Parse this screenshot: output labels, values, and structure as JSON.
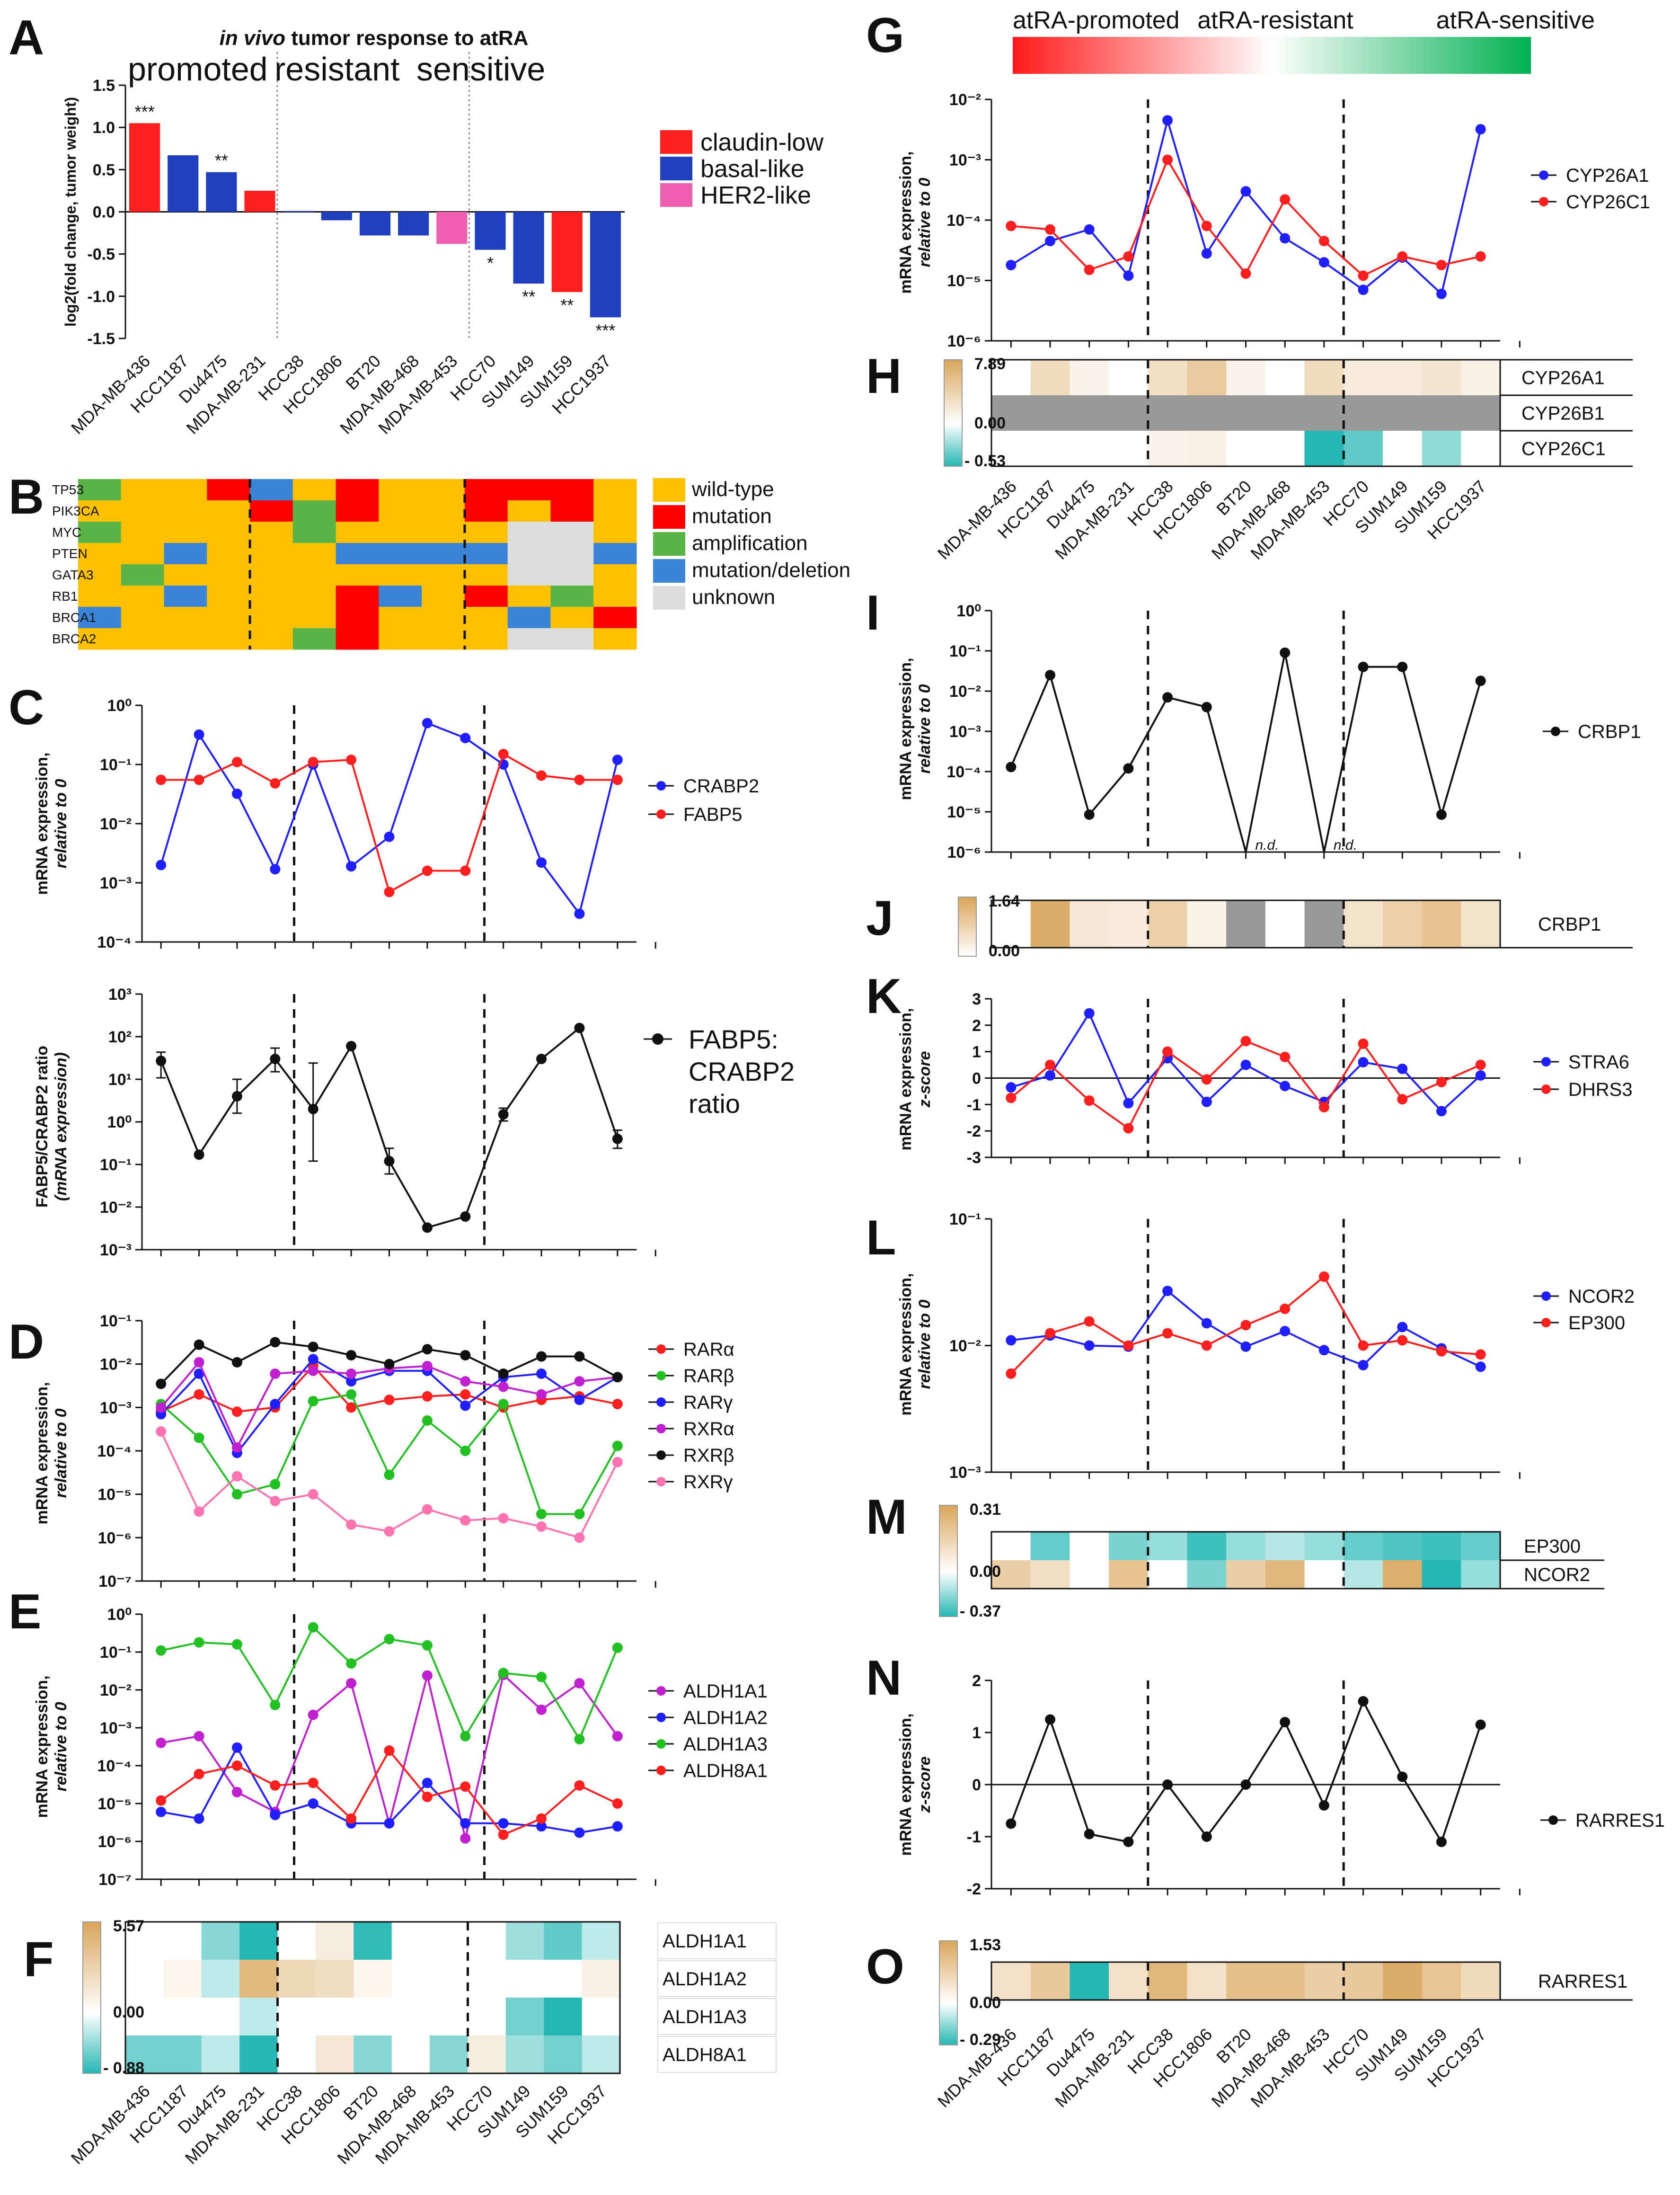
{
  "cell_lines": [
    "MDA-MB-436",
    "HCC1187",
    "Du4475",
    "MDA-MB-231",
    "HCC38",
    "HCC1806",
    "BT20",
    "MDA-MB-468",
    "MDA-MB-453",
    "HCC70",
    "SUM149",
    "SUM159",
    "HCC1937"
  ],
  "colors": {
    "claudin_low": "#ff2020",
    "basal_like": "#1f3fbf",
    "her2_like": "#ee5fb0",
    "wild": "#ffc000",
    "mutation": "#ff0000",
    "amplification": "#5bb446",
    "deletion": "#3a85d8",
    "unknown": "#dcdcdc",
    "heat_pos": "#d9a55a",
    "heat_neg": "#25b7b3",
    "na": "#999999"
  },
  "chart_data": [
    {
      "id": "A",
      "type": "bar",
      "title_italic": "in vivo",
      "title_rest": " tumor response to atRA",
      "groups": [
        "promoted",
        "resistant",
        "sensitive"
      ],
      "ylabel": "log2(fold change, tumor weight)",
      "ylim": [
        -1.5,
        1.5
      ],
      "yticks": [
        "1.5",
        "1.0",
        "0.5",
        "0.0",
        "-0.5",
        "-1.0",
        "-1.5"
      ],
      "values": [
        1.05,
        0.67,
        0.47,
        0.25,
        0.01,
        -0.1,
        -0.28,
        -0.28,
        -0.38,
        -0.45,
        -0.85,
        -0.95,
        -1.25
      ],
      "subtype": [
        "claudin_low",
        "basal_like",
        "basal_like",
        "claudin_low",
        "basal_like",
        "basal_like",
        "basal_like",
        "basal_like",
        "her2_like",
        "basal_like",
        "basal_like",
        "claudin_low",
        "basal_like"
      ],
      "sig": [
        "***",
        "",
        "**",
        "",
        "",
        "",
        "",
        "",
        "",
        "*",
        "**",
        "**",
        "***"
      ],
      "legend": [
        {
          "key": "claudin_low",
          "label": "claudin-low"
        },
        {
          "key": "basal_like",
          "label": "basal-like"
        },
        {
          "key": "her2_like",
          "label": "HER2-like"
        }
      ]
    },
    {
      "id": "B",
      "type": "heatmap",
      "genes": [
        "TP53",
        "PIK3CA",
        "MYC",
        "PTEN",
        "GATA3",
        "RB1",
        "BRCA1",
        "BRCA2"
      ],
      "grid": [
        [
          "amp",
          "wt",
          "wt",
          "mut",
          "del",
          "wt",
          "mut",
          "wt",
          "wt",
          "mut",
          "mut",
          "mut",
          "wt"
        ],
        [
          "wt",
          "wt",
          "wt",
          "wt",
          "mut",
          "amp",
          "mut",
          "wt",
          "wt",
          "mut",
          "wt",
          "mut",
          "wt"
        ],
        [
          "amp",
          "wt",
          "wt",
          "wt",
          "wt",
          "amp",
          "wt",
          "wt",
          "wt",
          "wt",
          "unk",
          "unk",
          "wt"
        ],
        [
          "wt",
          "wt",
          "del",
          "wt",
          "wt",
          "wt",
          "del",
          "del",
          "del",
          "del",
          "unk",
          "unk",
          "del"
        ],
        [
          "wt",
          "amp",
          "wt",
          "wt",
          "wt",
          "wt",
          "wt",
          "wt",
          "wt",
          "wt",
          "unk",
          "unk",
          "wt"
        ],
        [
          "wt",
          "wt",
          "del",
          "wt",
          "wt",
          "wt",
          "mut",
          "del",
          "wt",
          "mut",
          "wt",
          "amp",
          "wt"
        ],
        [
          "del",
          "wt",
          "wt",
          "wt",
          "wt",
          "wt",
          "mut",
          "wt",
          "wt",
          "wt",
          "del",
          "wt",
          "mut"
        ],
        [
          "wt",
          "wt",
          "wt",
          "wt",
          "wt",
          "amp",
          "mut",
          "wt",
          "wt",
          "wt",
          "unk",
          "unk",
          "wt"
        ]
      ],
      "legend": [
        {
          "key": "wt",
          "label": "wild-type"
        },
        {
          "key": "mut",
          "label": "mutation"
        },
        {
          "key": "amp",
          "label": "amplification"
        },
        {
          "key": "del",
          "label": "mutation/deletion"
        },
        {
          "key": "unk",
          "label": "unknown"
        }
      ]
    },
    {
      "id": "C",
      "type": "line",
      "ylabel": [
        "mRNA expression,",
        "relative to 0"
      ],
      "ylabel_italic": [
        false,
        true
      ],
      "ylog": [
        -4,
        0
      ],
      "ytick_labels": [
        "10⁰",
        "10⁻¹",
        "10⁻²",
        "10⁻³",
        "10⁻⁴"
      ],
      "series": [
        {
          "name": "CRABP2",
          "color": "#1f1fff",
          "values": [
            0.002,
            0.32,
            0.032,
            0.0017,
            0.1,
            0.0019,
            0.006,
            0.5,
            0.28,
            0.1,
            0.0022,
            0.0003,
            0.12
          ]
        },
        {
          "name": "FABP5",
          "color": "#ff1f1f",
          "values": [
            0.055,
            0.055,
            0.11,
            0.048,
            0.11,
            0.12,
            0.0007,
            0.0016,
            0.0016,
            0.15,
            0.065,
            0.055,
            0.055
          ]
        }
      ]
    },
    {
      "id": "C2",
      "type": "line",
      "ylabel": [
        "FABP5/CRABP2 ratio",
        "(mRNA expression)"
      ],
      "ylabel_italic": [
        false,
        true
      ],
      "ylog": [
        -3,
        3
      ],
      "ytick_labels": [
        "10³",
        "10²",
        "10¹",
        "10⁰",
        "10⁻¹",
        "10⁻²",
        "10⁻³"
      ],
      "series": [
        {
          "name": "FABP5: CRABP2 ratio",
          "color": "#111111",
          "values": [
            27,
            0.17,
            4,
            30,
            2,
            60,
            0.12,
            0.0033,
            0.006,
            1.5,
            30,
            160,
            0.4
          ]
        }
      ],
      "legend_lines": [
        "FABP5:",
        "CRABP2",
        "ratio"
      ]
    },
    {
      "id": "D",
      "type": "line",
      "ylabel": [
        "mRNA expression,",
        "relative to 0"
      ],
      "ylabel_italic": [
        false,
        true
      ],
      "ylog": [
        -7,
        -1
      ],
      "ytick_labels": [
        "10⁻¹",
        "10⁻²",
        "10⁻³",
        "10⁻⁴",
        "10⁻⁵",
        "10⁻⁶",
        "10⁻⁷"
      ],
      "series": [
        {
          "name": "RARα",
          "color": "#ff1f1f",
          "values": [
            0.0008,
            0.002,
            0.0008,
            0.001,
            0.009,
            0.001,
            0.0015,
            0.0018,
            0.002,
            0.001,
            0.0015,
            0.0018,
            0.0012
          ]
        },
        {
          "name": "RARβ",
          "color": "#22c022",
          "values": [
            0.0012,
            0.0002,
            1e-05,
            1.7e-05,
            0.0014,
            0.002,
            2.8e-05,
            0.0005,
            0.0001,
            0.0012,
            3.5e-06,
            3.5e-06,
            0.00013
          ]
        },
        {
          "name": "RARγ",
          "color": "#1f1fff",
          "values": [
            0.0007,
            0.006,
            9e-05,
            0.0012,
            0.013,
            0.004,
            0.007,
            0.007,
            0.0011,
            0.005,
            0.006,
            0.0015,
            0.005
          ]
        },
        {
          "name": "RXRα",
          "color": "#c020d0",
          "values": [
            0.001,
            0.011,
            0.00012,
            0.006,
            0.007,
            0.006,
            0.008,
            0.009,
            0.004,
            0.003,
            0.002,
            0.004,
            0.005
          ]
        },
        {
          "name": "RXRβ",
          "color": "#111111",
          "values": [
            0.0035,
            0.028,
            0.011,
            0.032,
            0.025,
            0.016,
            0.01,
            0.022,
            0.016,
            0.006,
            0.015,
            0.015,
            0.005
          ]
        },
        {
          "name": "RXRγ",
          "color": "#ff73b0",
          "values": [
            0.00028,
            4e-06,
            2.6e-05,
            7e-06,
            1e-05,
            2e-06,
            1.4e-06,
            4.5e-06,
            2.5e-06,
            2.8e-06,
            1.8e-06,
            1e-06,
            5.5e-05
          ]
        }
      ]
    },
    {
      "id": "E",
      "type": "line",
      "ylabel": [
        "mRNA expression,",
        "relative to 0"
      ],
      "ylabel_italic": [
        false,
        true
      ],
      "ylog": [
        -7,
        0
      ],
      "ytick_labels": [
        "10⁰",
        "10⁻¹",
        "10⁻²",
        "10⁻³",
        "10⁻⁴",
        "10⁻⁵",
        "10⁻⁶",
        "10⁻⁷"
      ],
      "series": [
        {
          "name": "ALDH1A1",
          "color": "#c020d0",
          "values": [
            0.0004,
            0.0006,
            2e-05,
            6e-06,
            0.0022,
            0.015,
            3e-06,
            0.024,
            1.2e-06,
            0.025,
            0.003,
            0.015,
            0.0006
          ]
        },
        {
          "name": "ALDH1A2",
          "color": "#1f1fff",
          "values": [
            6e-06,
            4e-06,
            0.0003,
            5e-06,
            1e-05,
            3e-06,
            3e-06,
            3.5e-05,
            3e-06,
            3e-06,
            2.5e-06,
            1.7e-06,
            2.5e-06
          ]
        },
        {
          "name": "ALDH1A3",
          "color": "#22c022",
          "values": [
            0.11,
            0.18,
            0.16,
            0.004,
            0.45,
            0.05,
            0.22,
            0.15,
            0.0006,
            0.028,
            0.022,
            0.0005,
            0.13
          ]
        },
        {
          "name": "ALDH8A1",
          "color": "#ff1f1f",
          "values": [
            1.2e-05,
            6e-05,
            0.0001,
            3e-05,
            3.5e-05,
            4e-06,
            0.00025,
            1.5e-05,
            2.8e-05,
            1.5e-06,
            4e-06,
            3e-05,
            1e-05
          ]
        }
      ]
    },
    {
      "id": "F",
      "type": "heatmap",
      "genes": [
        "ALDH1A1",
        "ALDH1A2",
        "ALDH1A3",
        "ALDH8A1"
      ],
      "scale": [
        "5.57",
        "0.00",
        "- 0.88"
      ],
      "smax": 5.57,
      "smin": -0.88,
      "values": [
        [
          0,
          0,
          -0.3,
          -0.88,
          0,
          0.3,
          -0.8,
          0,
          0,
          0,
          -0.2,
          -0.5,
          -0.1
        ],
        [
          0,
          0.1,
          -0.1,
          3.5,
          1.2,
          0.9,
          0.1,
          0,
          0,
          0,
          0,
          0,
          0.2
        ],
        [
          0,
          0,
          0,
          -0.1,
          0,
          0,
          0,
          0,
          0,
          0,
          -0.4,
          -0.88,
          0
        ],
        [
          -0.4,
          -0.4,
          -0.1,
          -0.85,
          0,
          0.5,
          -0.3,
          0,
          -0.3,
          0.3,
          -0.2,
          -0.4,
          -0.1
        ]
      ]
    },
    {
      "id": "G",
      "type": "line",
      "gradient_labels": [
        "atRA-promoted",
        "atRA-resistant",
        "atRA-sensitive"
      ],
      "ylabel": [
        "mRNA expression,",
        "relative to 0"
      ],
      "ylabel_italic": [
        false,
        true
      ],
      "ylog": [
        -6,
        -2
      ],
      "ytick_labels": [
        "10⁻²",
        "10⁻³",
        "10⁻⁴",
        "10⁻⁵",
        "10⁻⁶"
      ],
      "series": [
        {
          "name": "CYP26A1",
          "color": "#1f1fff",
          "values": [
            1.8e-05,
            4.5e-05,
            7e-05,
            1.2e-05,
            0.0045,
            2.8e-05,
            0.0003,
            5e-05,
            2e-05,
            7e-06,
            2.4e-05,
            6e-06,
            0.0032
          ]
        },
        {
          "name": "CYP26C1",
          "color": "#ff1f1f",
          "values": [
            8e-05,
            7e-05,
            1.5e-05,
            2.5e-05,
            0.001,
            8e-05,
            1.3e-05,
            0.00022,
            4.5e-05,
            1.2e-05,
            2.5e-05,
            1.8e-05,
            2.5e-05
          ]
        }
      ]
    },
    {
      "id": "H",
      "type": "heatmap",
      "genes": [
        "CYP26A1",
        "CYP26B1",
        "CYP26C1"
      ],
      "scale": [
        "7.89",
        "0.00",
        "- 0.53"
      ],
      "smax": 7.89,
      "smin": -0.53,
      "values": [
        [
          0,
          1.5,
          0.2,
          0,
          1.2,
          3.0,
          0.2,
          0,
          1.5,
          0.5,
          0.5,
          0.8,
          0.3
        ],
        [
          null,
          null,
          null,
          null,
          null,
          null,
          null,
          null,
          null,
          null,
          null,
          null,
          null
        ],
        [
          0,
          0,
          0,
          0,
          0.2,
          0.3,
          0,
          0,
          -0.53,
          -0.3,
          0,
          -0.15,
          0
        ]
      ]
    },
    {
      "id": "I",
      "type": "line",
      "ylabel": [
        "mRNA expression,",
        "relative to 0"
      ],
      "ylabel_italic": [
        false,
        true
      ],
      "ylog": [
        -6,
        0
      ],
      "ytick_labels": [
        "10⁰",
        "10⁻¹",
        "10⁻²",
        "10⁻³",
        "10⁻⁴",
        "10⁻⁵",
        "10⁻⁶"
      ],
      "series": [
        {
          "name": "CRBP1",
          "color": "#111111",
          "values": [
            0.00013,
            0.025,
            8.5e-06,
            0.00012,
            0.007,
            0.004,
            null,
            0.09,
            null,
            0.04,
            0.04,
            8.5e-06,
            0.018
          ]
        }
      ],
      "nd_label": "n.d."
    },
    {
      "id": "J",
      "type": "heatmap",
      "genes": [
        "CRBP1"
      ],
      "scale": [
        "1.64",
        "0.00"
      ],
      "smax": 1.64,
      "smin": 0,
      "values": [
        [
          0,
          1.4,
          0.15,
          0.1,
          0.5,
          0.05,
          null,
          0,
          null,
          0.2,
          0.5,
          0.8,
          0.2
        ]
      ]
    },
    {
      "id": "K",
      "type": "line",
      "ylabel": [
        "mRNA expression,",
        "z-score"
      ],
      "ylabel_italic": [
        false,
        true
      ],
      "ylin": [
        -3,
        3
      ],
      "ytick_labels": [
        "3",
        "2",
        "1",
        "0",
        "-1",
        "-2",
        "-3"
      ],
      "series": [
        {
          "name": "STRA6",
          "color": "#1f1fff",
          "values": [
            -0.35,
            0.1,
            2.45,
            -0.95,
            0.75,
            -0.9,
            0.5,
            -0.3,
            -0.9,
            0.6,
            0.35,
            -1.25,
            0.1
          ]
        },
        {
          "name": "DHRS3",
          "color": "#ff1f1f",
          "values": [
            -0.75,
            0.5,
            -0.85,
            -1.9,
            1.0,
            -0.05,
            1.4,
            0.8,
            -1.1,
            1.3,
            -0.8,
            -0.15,
            0.5
          ]
        }
      ]
    },
    {
      "id": "L",
      "type": "line",
      "ylabel": [
        "mRNA expression,",
        "relative to 0"
      ],
      "ylabel_italic": [
        false,
        true
      ],
      "ylog": [
        -3,
        -1
      ],
      "ytick_labels": [
        "10⁻¹",
        "10⁻²",
        "10⁻³"
      ],
      "series": [
        {
          "name": "NCOR2",
          "color": "#1f1fff",
          "values": [
            0.011,
            0.012,
            0.01,
            0.0098,
            0.027,
            0.015,
            0.0098,
            0.013,
            0.0092,
            0.007,
            0.014,
            0.0095,
            0.0068
          ]
        },
        {
          "name": "EP300",
          "color": "#ff1f1f",
          "values": [
            0.006,
            0.0125,
            0.0155,
            0.01,
            0.0125,
            0.01,
            0.0145,
            0.0195,
            0.035,
            0.01,
            0.011,
            0.009,
            0.0085
          ]
        }
      ]
    },
    {
      "id": "M",
      "type": "heatmap",
      "genes": [
        "EP300",
        "NCOR2"
      ],
      "scale": [
        "0.31",
        "0.00",
        "- 0.37"
      ],
      "smax": 0.31,
      "smin": -0.37,
      "values": [
        [
          0,
          -0.2,
          0,
          -0.15,
          -0.1,
          -0.3,
          -0.1,
          -0.05,
          -0.1,
          -0.2,
          -0.25,
          -0.3,
          -0.2
        ],
        [
          0.1,
          0.05,
          0,
          0.15,
          0,
          -0.15,
          0.1,
          0.2,
          0,
          -0.05,
          0.25,
          -0.37,
          -0.1
        ]
      ]
    },
    {
      "id": "N",
      "type": "line",
      "ylabel": [
        "mRNA expression,",
        "z-score"
      ],
      "ylabel_italic": [
        false,
        true
      ],
      "ylin": [
        -2,
        2
      ],
      "ytick_labels": [
        "2",
        "1",
        "0",
        "-1",
        "-2"
      ],
      "series": [
        {
          "name": "RARRES1",
          "color": "#111111",
          "values": [
            -0.75,
            1.25,
            -0.95,
            -1.1,
            0,
            -1.0,
            0,
            1.2,
            -0.4,
            1.6,
            0.15,
            -1.1,
            1.15
          ]
        }
      ]
    },
    {
      "id": "O",
      "type": "heatmap",
      "genes": [
        "RARRES1"
      ],
      "scale": [
        "1.53",
        "0.00",
        "- 0.29"
      ],
      "smax": 1.53,
      "smin": -0.29,
      "values": [
        [
          0.2,
          0.6,
          -0.29,
          0.2,
          1.0,
          0.2,
          0.8,
          0.8,
          0.5,
          0.6,
          1.3,
          0.7,
          0.3
        ]
      ]
    }
  ]
}
